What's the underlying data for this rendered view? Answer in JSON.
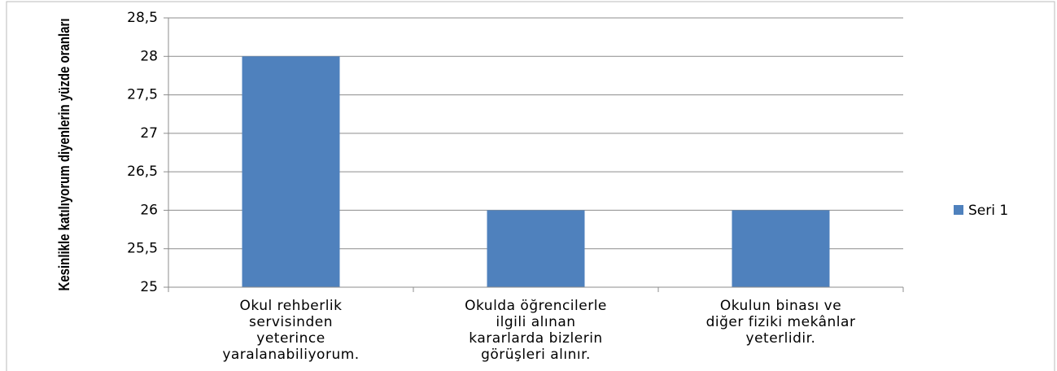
{
  "chart_data": {
    "type": "bar",
    "y_label": "Kesinlikle katılıyorum diyenlerin yüzde oranları",
    "categories": [
      "Okul rehberlik\nservisinden\nyeterince\nyaralanabiliyorum.",
      "Okulda öğrencilerle\nilgili alınan\nkararlarda bizlerin\ngörüşleri alınır.",
      "Okulun binası ve\ndiğer fiziki mekânlar\nyeterlidir."
    ],
    "series": [
      {
        "name": "Seri 1",
        "color": "#4f81bd",
        "values": [
          28,
          26,
          26
        ]
      }
    ],
    "ylim": [
      25,
      28.5
    ],
    "yticks": [
      25,
      {
        "value": 25.5,
        "label": "25,5"
      },
      26,
      {
        "value": 26.5,
        "label": "26,5"
      },
      27,
      {
        "value": 27.5,
        "label": "27,5"
      },
      28,
      {
        "value": 28.5,
        "label": "28,5"
      }
    ],
    "grid": true,
    "legend": "right"
  }
}
